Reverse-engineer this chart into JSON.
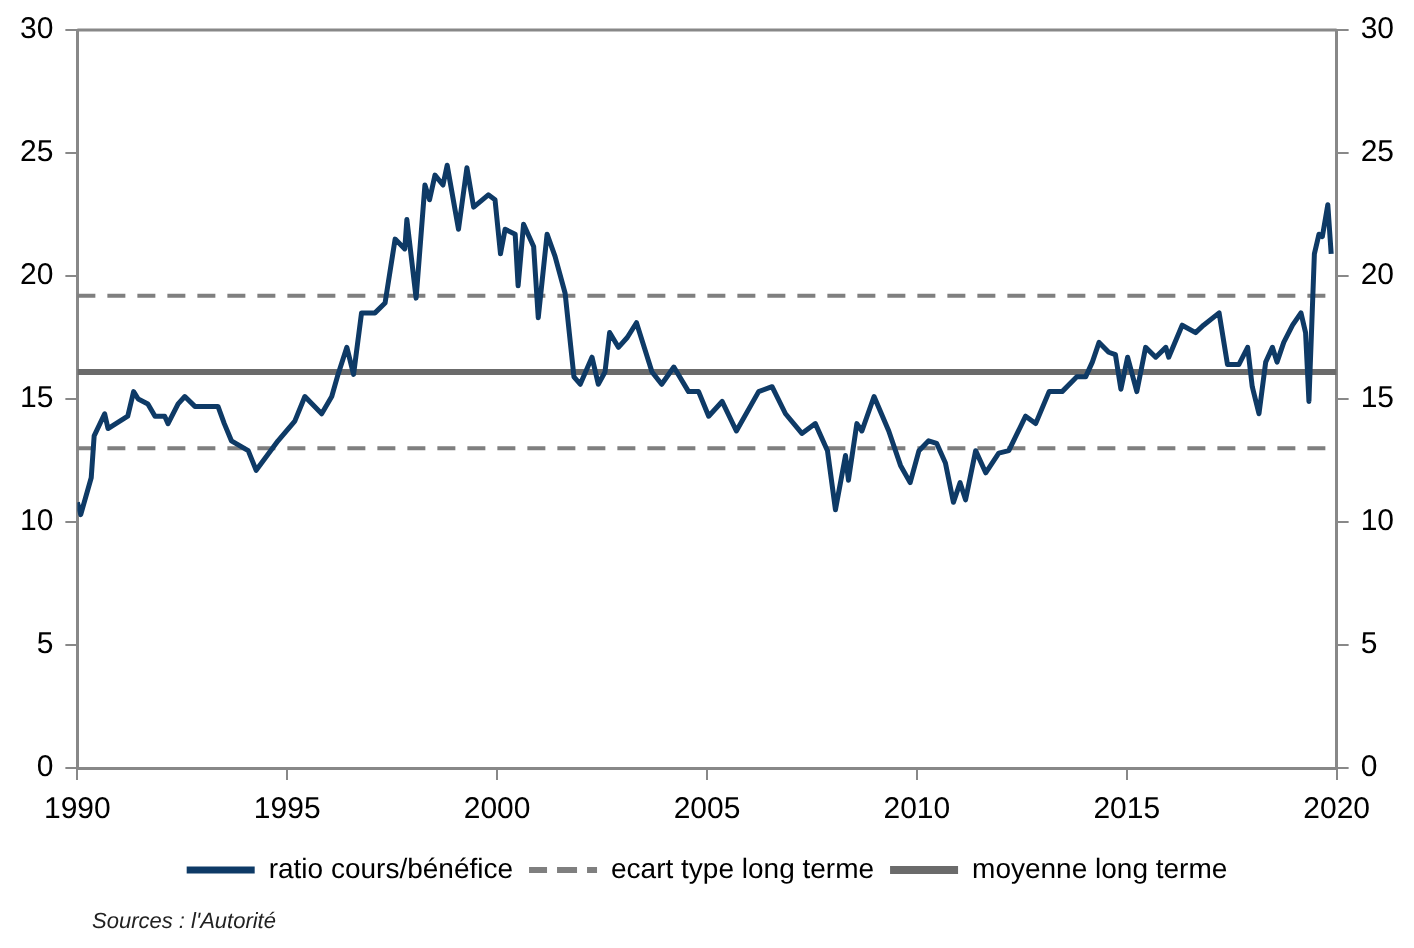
{
  "chart_data": {
    "type": "line",
    "marker": "none",
    "legend": "bottom",
    "grid": false,
    "xlim": [
      1990,
      2020
    ],
    "xticks": [
      1990,
      1995,
      2000,
      2005,
      2010,
      2015,
      2020
    ],
    "ylim": [
      0,
      30
    ],
    "yticks": [
      0,
      5,
      10,
      15,
      20,
      25,
      30
    ],
    "y2lim": [
      0,
      30
    ],
    "y2ticks": [
      0,
      5,
      10,
      15,
      20,
      25,
      30
    ],
    "annotations": [
      "Sources : l'Autorité"
    ],
    "series": [
      {
        "name": "ratio cours/bénéfice",
        "color": "#0e3a66",
        "line_style": "solid",
        "x": [
          1990.0,
          1990.08,
          1990.33,
          1990.4,
          1990.65,
          1990.73,
          1991.2,
          1991.34,
          1991.45,
          1991.68,
          1991.85,
          1992.08,
          1992.16,
          1992.4,
          1992.56,
          1992.8,
          1993.35,
          1993.5,
          1993.67,
          1994.07,
          1994.26,
          1994.78,
          1995.18,
          1995.42,
          1995.82,
          1996.06,
          1996.21,
          1996.42,
          1996.58,
          1996.77,
          1997.09,
          1997.33,
          1997.57,
          1997.8,
          1997.85,
          1998.07,
          1998.28,
          1998.39,
          1998.52,
          1998.71,
          1998.81,
          1999.08,
          1999.28,
          1999.44,
          1999.79,
          1999.95,
          2000.08,
          2000.19,
          2000.43,
          2000.5,
          2000.63,
          2000.87,
          2000.98,
          2001.19,
          2001.38,
          2001.62,
          2001.83,
          2001.98,
          2002.26,
          2002.41,
          2002.57,
          2002.68,
          2002.89,
          2003.1,
          2003.32,
          2003.69,
          2003.92,
          2004.21,
          2004.56,
          2004.8,
          2005.04,
          2005.36,
          2005.7,
          2006.23,
          2006.55,
          2006.87,
          2007.26,
          2007.58,
          2007.87,
          2008.06,
          2008.3,
          2008.37,
          2008.57,
          2008.69,
          2008.98,
          2009.33,
          2009.61,
          2009.84,
          2010.05,
          2010.28,
          2010.47,
          2010.68,
          2010.87,
          2011.03,
          2011.16,
          2011.4,
          2011.64,
          2011.95,
          2012.19,
          2012.59,
          2012.83,
          2013.15,
          2013.46,
          2013.81,
          2014.02,
          2014.18,
          2014.34,
          2014.57,
          2014.73,
          2014.86,
          2015.02,
          2015.24,
          2015.45,
          2015.69,
          2015.93,
          2016.0,
          2016.32,
          2016.64,
          2016.83,
          2017.2,
          2017.4,
          2017.67,
          2017.88,
          2017.99,
          2018.15,
          2018.31,
          2018.47,
          2018.58,
          2018.74,
          2018.95,
          2019.15,
          2019.26,
          2019.34,
          2019.47,
          2019.58,
          2019.66,
          2019.79,
          2019.87
        ],
        "values": [
          10.8,
          10.3,
          11.8,
          13.5,
          14.4,
          13.8,
          14.3,
          15.3,
          15.0,
          14.8,
          14.3,
          14.3,
          14.0,
          14.8,
          15.1,
          14.7,
          14.7,
          14.0,
          13.3,
          12.9,
          12.1,
          13.3,
          14.1,
          15.1,
          14.4,
          15.1,
          16.0,
          17.1,
          16.0,
          18.5,
          18.5,
          18.9,
          21.5,
          21.1,
          22.3,
          19.1,
          23.7,
          23.1,
          24.1,
          23.7,
          24.5,
          21.9,
          24.4,
          22.8,
          23.3,
          23.1,
          20.9,
          21.9,
          21.7,
          19.6,
          22.1,
          21.2,
          18.3,
          21.7,
          20.8,
          19.3,
          15.9,
          15.6,
          16.7,
          15.6,
          16.1,
          17.7,
          17.1,
          17.5,
          18.1,
          16.1,
          15.6,
          16.3,
          15.3,
          15.3,
          14.3,
          14.9,
          13.7,
          15.3,
          15.5,
          14.4,
          13.6,
          14.0,
          12.9,
          10.5,
          12.7,
          11.7,
          14.0,
          13.7,
          15.1,
          13.7,
          12.3,
          11.6,
          12.9,
          13.3,
          13.2,
          12.4,
          10.8,
          11.6,
          10.9,
          12.9,
          12.0,
          12.8,
          12.9,
          14.3,
          14.0,
          15.3,
          15.3,
          15.9,
          15.9,
          16.5,
          17.3,
          16.9,
          16.8,
          15.4,
          16.7,
          15.3,
          17.1,
          16.7,
          17.1,
          16.7,
          18.0,
          17.7,
          18.0,
          18.5,
          16.4,
          16.4,
          17.1,
          15.5,
          14.4,
          16.5,
          17.1,
          16.5,
          17.3,
          18.0,
          18.5,
          17.7,
          14.9,
          20.9,
          21.7,
          21.6,
          22.9,
          20.9
        ]
      },
      {
        "name": "ecart type long terme",
        "color": "#7f7f7f",
        "line_style": "dashed",
        "x": [
          1990,
          2020
        ],
        "values": [
          19.2,
          19.2
        ]
      },
      {
        "color": "#7f7f7f",
        "line_style": "dashed",
        "x": [
          1990,
          2020
        ],
        "values": [
          13.0,
          13.0
        ]
      },
      {
        "name": "moyenne long terme",
        "color": "#6b6b6b",
        "line_style": "solid",
        "x": [
          1990,
          2020
        ],
        "values": [
          16.1,
          16.1
        ]
      }
    ]
  }
}
